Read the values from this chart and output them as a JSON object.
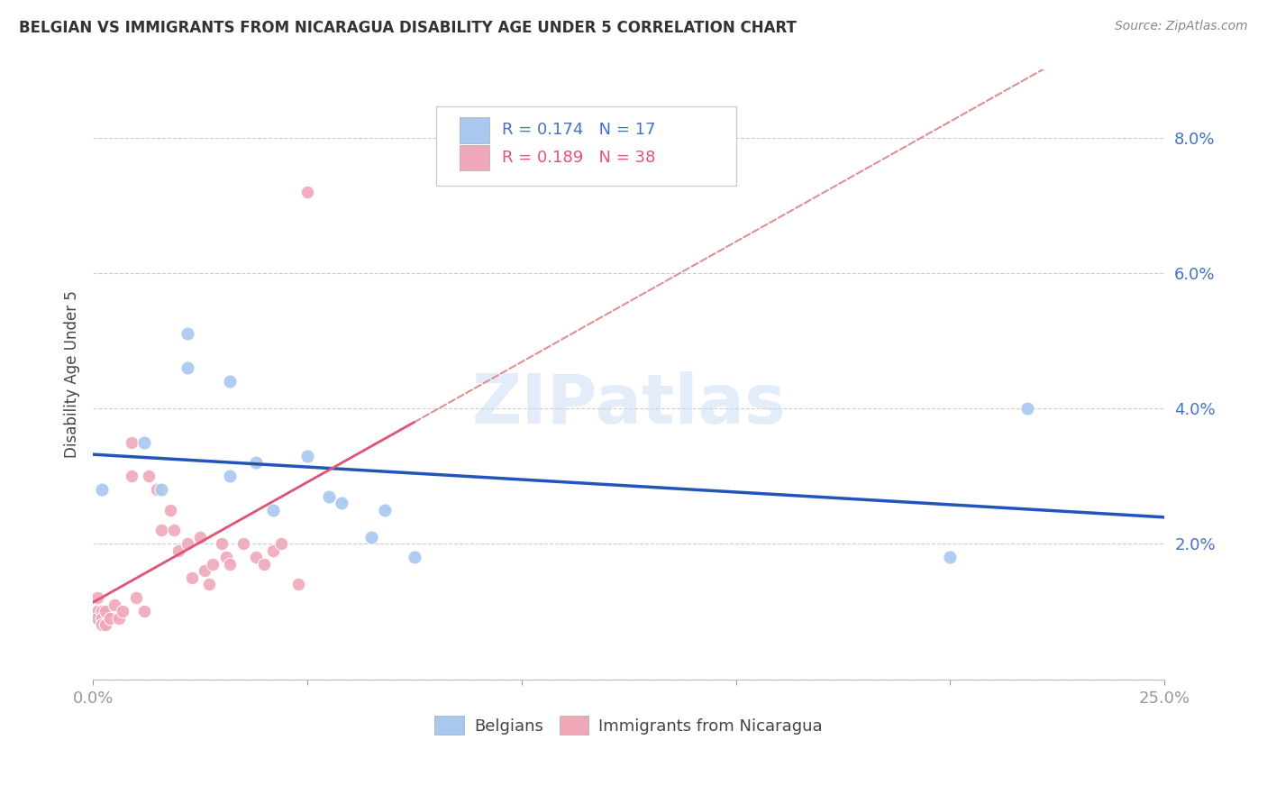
{
  "title": "BELGIAN VS IMMIGRANTS FROM NICARAGUA DISABILITY AGE UNDER 5 CORRELATION CHART",
  "source": "Source: ZipAtlas.com",
  "ylabel": "Disability Age Under 5",
  "xlim": [
    0.0,
    0.25
  ],
  "ylim": [
    0.0,
    0.09
  ],
  "ytick_vals": [
    0.0,
    0.02,
    0.04,
    0.06,
    0.08
  ],
  "ytick_labels": [
    "",
    "2.0%",
    "4.0%",
    "6.0%",
    "8.0%"
  ],
  "xtick_vals": [
    0.0,
    0.05,
    0.1,
    0.15,
    0.2,
    0.25
  ],
  "xtick_labels": [
    "0.0%",
    "",
    "",
    "",
    "",
    "25.0%"
  ],
  "belgian_R": 0.174,
  "belgian_N": 17,
  "nicaragua_R": 0.189,
  "nicaragua_N": 38,
  "belgian_color": "#a8c8f0",
  "nicaragua_color": "#f0a8b8",
  "belgian_line_color": "#2255bb",
  "nicaragua_line_solid_color": "#e05575",
  "nicaragua_line_dash_color": "#e09090",
  "watermark_text": "ZIPatlas",
  "belgians_x": [
    0.002,
    0.012,
    0.016,
    0.022,
    0.022,
    0.032,
    0.032,
    0.038,
    0.042,
    0.05,
    0.055,
    0.058,
    0.065,
    0.068,
    0.075,
    0.2,
    0.218
  ],
  "belgians_y": [
    0.028,
    0.035,
    0.028,
    0.051,
    0.046,
    0.044,
    0.03,
    0.032,
    0.025,
    0.033,
    0.027,
    0.026,
    0.021,
    0.025,
    0.018,
    0.018,
    0.04
  ],
  "nicaragua_x": [
    0.001,
    0.001,
    0.001,
    0.002,
    0.002,
    0.002,
    0.003,
    0.003,
    0.004,
    0.005,
    0.006,
    0.007,
    0.009,
    0.009,
    0.01,
    0.012,
    0.013,
    0.015,
    0.016,
    0.018,
    0.019,
    0.02,
    0.022,
    0.023,
    0.025,
    0.026,
    0.027,
    0.028,
    0.03,
    0.031,
    0.032,
    0.035,
    0.038,
    0.04,
    0.042,
    0.044,
    0.048,
    0.05
  ],
  "nicaragua_y": [
    0.012,
    0.01,
    0.009,
    0.01,
    0.009,
    0.008,
    0.01,
    0.008,
    0.009,
    0.011,
    0.009,
    0.01,
    0.035,
    0.03,
    0.012,
    0.01,
    0.03,
    0.028,
    0.022,
    0.025,
    0.022,
    0.019,
    0.02,
    0.015,
    0.021,
    0.016,
    0.014,
    0.017,
    0.02,
    0.018,
    0.017,
    0.02,
    0.018,
    0.017,
    0.019,
    0.02,
    0.014,
    0.072
  ],
  "nicaragua_line_x_end": 0.075,
  "belgian_line_intercept": 0.03,
  "belgian_line_slope": 0.04,
  "nicaragua_solid_intercept": 0.005,
  "nicaragua_solid_slope": 0.25,
  "nicaragua_dash_intercept": 0.01,
  "nicaragua_dash_slope": 0.2
}
